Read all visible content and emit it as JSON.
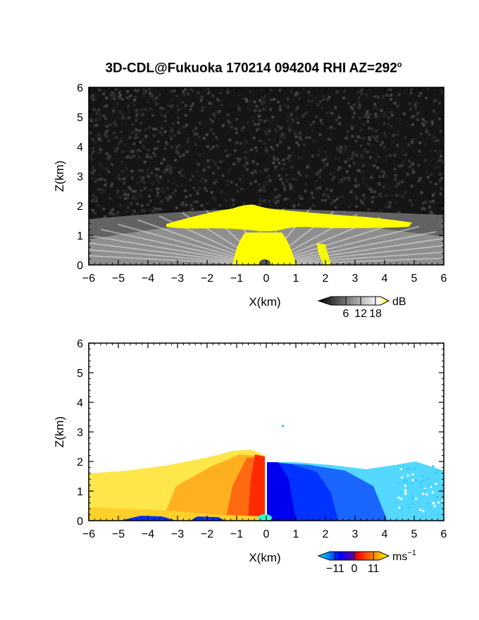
{
  "title": "3D-CDL@Fukuoka 170214 094204 RHI AZ=292",
  "title_superscript": "o",
  "chart_data": [
    {
      "type": "heatmap",
      "name": "reflectivity-panel",
      "quantity": "backscatter intensity",
      "xlabel": "X(km)",
      "ylabel": "Z(km)",
      "xlim": [
        -6,
        6
      ],
      "ylim": [
        0,
        6
      ],
      "x_ticks": [
        -6,
        -5,
        -4,
        -3,
        -2,
        -1,
        0,
        1,
        2,
        3,
        4,
        5,
        6
      ],
      "y_ticks": [
        0,
        1,
        2,
        3,
        4,
        5,
        6
      ],
      "x_tick_labels": [
        "−6",
        "−5",
        "−4",
        "−3",
        "−2",
        "−1",
        "0",
        "1",
        "2",
        "3",
        "4",
        "5",
        "6"
      ],
      "y_tick_labels": [
        "0",
        "1",
        "2",
        "3",
        "4",
        "5",
        "6"
      ],
      "colorbar": {
        "unit": "dB",
        "ticks": [
          6,
          12,
          18
        ],
        "tick_labels": [
          "6",
          "12",
          "18"
        ],
        "range": [
          0,
          20
        ],
        "colors": [
          "#000000",
          "#ffffff",
          "#ffff00"
        ]
      },
      "features": {
        "saturated_layer_top_km": 2.0,
        "saturated_layer_base_km": 1.4,
        "saturated_layer_x_range_km": [
          -3.3,
          4.6
        ],
        "aerosol_layer_top_km": 1.6,
        "background": "noise"
      }
    },
    {
      "type": "heatmap",
      "name": "velocity-panel",
      "quantity": "radial velocity",
      "xlabel": "X(km)",
      "ylabel": "Z(km)",
      "xlim": [
        -6,
        6
      ],
      "ylim": [
        0,
        6
      ],
      "x_ticks": [
        -6,
        -5,
        -4,
        -3,
        -2,
        -1,
        0,
        1,
        2,
        3,
        4,
        5,
        6
      ],
      "y_ticks": [
        0,
        1,
        2,
        3,
        4,
        5,
        6
      ],
      "x_tick_labels": [
        "−6",
        "−5",
        "−4",
        "−3",
        "−2",
        "−1",
        "0",
        "1",
        "2",
        "3",
        "4",
        "5",
        "6"
      ],
      "y_tick_labels": [
        "0",
        "1",
        "2",
        "3",
        "4",
        "5",
        "6"
      ],
      "colorbar": {
        "unit": "ms",
        "unit_superscript": "−1",
        "ticks": [
          -11,
          0,
          11
        ],
        "tick_labels": [
          "−11",
          "0",
          "11"
        ],
        "range": [
          -15,
          15
        ],
        "colors": [
          "#00ffff",
          "#0000ff",
          "#ff0000",
          "#ffff00"
        ]
      },
      "features": {
        "echo_top_left_km": 1.7,
        "echo_top_center_km": 2.3,
        "echo_top_right_km": 1.9,
        "velocity_sign_change_x_km": 0.0,
        "isolated_point": {
          "x": 0.6,
          "z": 3.2
        }
      }
    }
  ]
}
